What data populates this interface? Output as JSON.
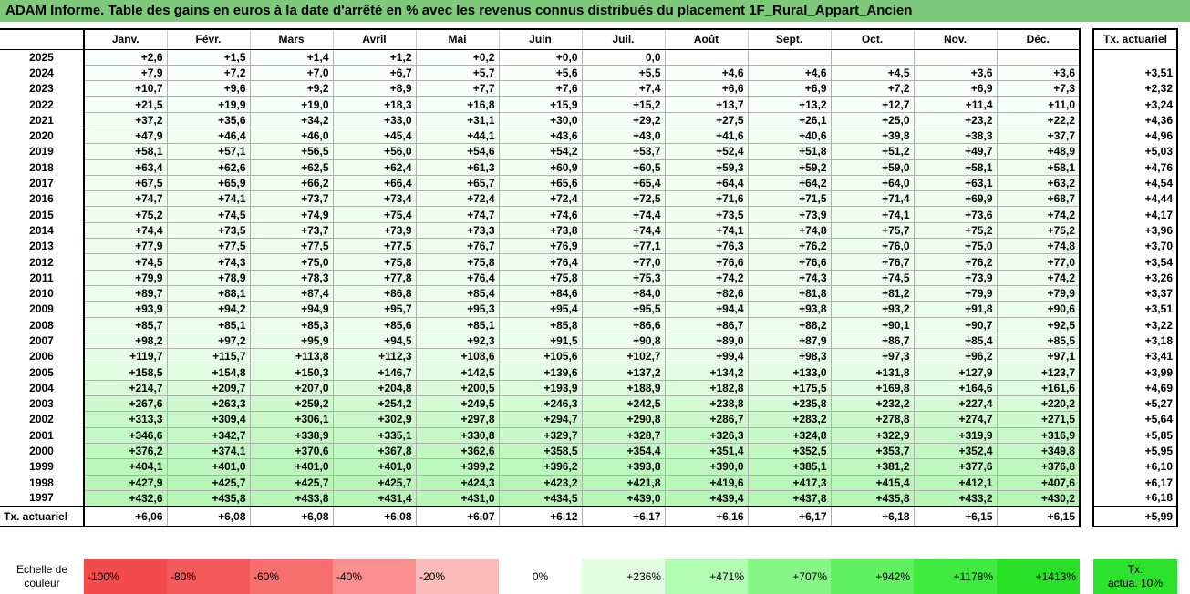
{
  "title": "ADAM Informe. Table des gains en euros à la date d'arrêté en % avec les revenus connus distribués du placement 1F_Rural_Appart_Ancien",
  "months": [
    "Janv.",
    "Févr.",
    "Mars",
    "Avril",
    "Mai",
    "Juin",
    "Juil.",
    "Août",
    "Sept.",
    "Oct.",
    "Nov.",
    "Déc."
  ],
  "rate_header": "Tx. actuariel",
  "rows": [
    {
      "year": "2025",
      "values": [
        "+2,6",
        "+1,5",
        "+1,4",
        "+1,2",
        "+0,2",
        "+0,0",
        "0,0",
        "",
        "",
        "",
        "",
        ""
      ],
      "rate": ""
    },
    {
      "year": "2024",
      "values": [
        "+7,9",
        "+7,2",
        "+7,0",
        "+6,7",
        "+5,7",
        "+5,6",
        "+5,5",
        "+4,6",
        "+4,6",
        "+4,5",
        "+3,6",
        "+3,6"
      ],
      "rate": "+3,51"
    },
    {
      "year": "2023",
      "values": [
        "+10,7",
        "+9,6",
        "+9,2",
        "+8,9",
        "+7,7",
        "+7,6",
        "+7,4",
        "+6,6",
        "+6,9",
        "+7,2",
        "+6,9",
        "+7,3"
      ],
      "rate": "+2,32"
    },
    {
      "year": "2022",
      "values": [
        "+21,5",
        "+19,9",
        "+19,0",
        "+18,3",
        "+16,8",
        "+15,9",
        "+15,2",
        "+13,7",
        "+13,2",
        "+12,7",
        "+11,4",
        "+11,0"
      ],
      "rate": "+3,24"
    },
    {
      "year": "2021",
      "values": [
        "+37,2",
        "+35,6",
        "+34,2",
        "+33,0",
        "+31,1",
        "+30,0",
        "+29,2",
        "+27,5",
        "+26,1",
        "+25,0",
        "+23,2",
        "+22,2"
      ],
      "rate": "+4,36"
    },
    {
      "year": "2020",
      "values": [
        "+47,9",
        "+46,4",
        "+46,0",
        "+45,4",
        "+44,1",
        "+43,6",
        "+43,0",
        "+41,6",
        "+40,6",
        "+39,8",
        "+38,3",
        "+37,7"
      ],
      "rate": "+4,96"
    },
    {
      "year": "2019",
      "values": [
        "+58,1",
        "+57,1",
        "+56,5",
        "+56,0",
        "+54,6",
        "+54,2",
        "+53,7",
        "+52,4",
        "+51,8",
        "+51,2",
        "+49,7",
        "+48,9"
      ],
      "rate": "+5,03"
    },
    {
      "year": "2018",
      "values": [
        "+63,4",
        "+62,6",
        "+62,5",
        "+62,4",
        "+61,3",
        "+60,9",
        "+60,5",
        "+59,3",
        "+59,2",
        "+59,0",
        "+58,1",
        "+58,1"
      ],
      "rate": "+4,76"
    },
    {
      "year": "2017",
      "values": [
        "+67,5",
        "+65,9",
        "+66,2",
        "+66,4",
        "+65,7",
        "+65,6",
        "+65,4",
        "+64,4",
        "+64,2",
        "+64,0",
        "+63,1",
        "+63,2"
      ],
      "rate": "+4,54"
    },
    {
      "year": "2016",
      "values": [
        "+74,7",
        "+74,1",
        "+73,7",
        "+73,4",
        "+72,4",
        "+72,4",
        "+72,5",
        "+71,6",
        "+71,5",
        "+71,4",
        "+69,9",
        "+68,7"
      ],
      "rate": "+4,44"
    },
    {
      "year": "2015",
      "values": [
        "+75,2",
        "+74,5",
        "+74,9",
        "+75,4",
        "+74,7",
        "+74,6",
        "+74,4",
        "+73,5",
        "+73,9",
        "+74,1",
        "+73,6",
        "+74,2"
      ],
      "rate": "+4,17"
    },
    {
      "year": "2014",
      "values": [
        "+74,4",
        "+73,5",
        "+73,7",
        "+73,9",
        "+73,3",
        "+73,8",
        "+74,4",
        "+74,1",
        "+74,8",
        "+75,7",
        "+75,2",
        "+75,2"
      ],
      "rate": "+3,96"
    },
    {
      "year": "2013",
      "values": [
        "+77,9",
        "+77,5",
        "+77,5",
        "+77,5",
        "+76,7",
        "+76,9",
        "+77,1",
        "+76,3",
        "+76,2",
        "+76,0",
        "+75,0",
        "+74,8"
      ],
      "rate": "+3,70"
    },
    {
      "year": "2012",
      "values": [
        "+74,5",
        "+74,3",
        "+75,0",
        "+75,8",
        "+75,8",
        "+76,4",
        "+77,0",
        "+76,6",
        "+76,6",
        "+76,7",
        "+76,2",
        "+77,0"
      ],
      "rate": "+3,54"
    },
    {
      "year": "2011",
      "values": [
        "+79,9",
        "+78,9",
        "+78,3",
        "+77,8",
        "+76,4",
        "+75,8",
        "+75,3",
        "+74,2",
        "+74,3",
        "+74,5",
        "+73,9",
        "+74,2"
      ],
      "rate": "+3,26"
    },
    {
      "year": "2010",
      "values": [
        "+89,7",
        "+88,1",
        "+87,4",
        "+86,8",
        "+85,4",
        "+84,6",
        "+84,0",
        "+82,6",
        "+81,8",
        "+81,2",
        "+79,9",
        "+79,9"
      ],
      "rate": "+3,37"
    },
    {
      "year": "2009",
      "values": [
        "+93,9",
        "+94,2",
        "+94,9",
        "+95,7",
        "+95,3",
        "+95,4",
        "+95,5",
        "+94,4",
        "+93,8",
        "+93,2",
        "+91,8",
        "+90,6"
      ],
      "rate": "+3,51"
    },
    {
      "year": "2008",
      "values": [
        "+85,7",
        "+85,1",
        "+85,3",
        "+85,6",
        "+85,1",
        "+85,8",
        "+86,6",
        "+86,7",
        "+88,2",
        "+90,1",
        "+90,7",
        "+92,5"
      ],
      "rate": "+3,22"
    },
    {
      "year": "2007",
      "values": [
        "+98,2",
        "+97,2",
        "+95,9",
        "+94,5",
        "+92,3",
        "+91,5",
        "+90,8",
        "+89,0",
        "+87,9",
        "+86,7",
        "+85,4",
        "+85,5"
      ],
      "rate": "+3,18"
    },
    {
      "year": "2006",
      "values": [
        "+119,7",
        "+115,7",
        "+113,8",
        "+112,3",
        "+108,6",
        "+105,6",
        "+102,7",
        "+99,4",
        "+98,3",
        "+97,3",
        "+96,2",
        "+97,1"
      ],
      "rate": "+3,41"
    },
    {
      "year": "2005",
      "values": [
        "+158,5",
        "+154,8",
        "+150,3",
        "+146,7",
        "+142,5",
        "+139,6",
        "+137,2",
        "+134,2",
        "+133,0",
        "+131,8",
        "+127,9",
        "+123,7"
      ],
      "rate": "+3,99"
    },
    {
      "year": "2004",
      "values": [
        "+214,7",
        "+209,7",
        "+207,0",
        "+204,8",
        "+200,5",
        "+193,9",
        "+188,9",
        "+182,8",
        "+175,5",
        "+169,8",
        "+164,6",
        "+161,6"
      ],
      "rate": "+4,69"
    },
    {
      "year": "2003",
      "values": [
        "+267,6",
        "+263,3",
        "+259,2",
        "+254,2",
        "+249,5",
        "+246,3",
        "+242,5",
        "+238,8",
        "+235,8",
        "+232,2",
        "+227,4",
        "+220,2"
      ],
      "rate": "+5,27"
    },
    {
      "year": "2002",
      "values": [
        "+313,3",
        "+309,4",
        "+306,1",
        "+302,9",
        "+297,8",
        "+294,7",
        "+290,8",
        "+286,7",
        "+283,2",
        "+278,8",
        "+274,7",
        "+271,5"
      ],
      "rate": "+5,64"
    },
    {
      "year": "2001",
      "values": [
        "+346,6",
        "+342,7",
        "+338,9",
        "+335,1",
        "+330,8",
        "+329,7",
        "+328,7",
        "+326,3",
        "+324,8",
        "+322,9",
        "+319,9",
        "+316,9"
      ],
      "rate": "+5,85"
    },
    {
      "year": "2000",
      "values": [
        "+376,2",
        "+374,1",
        "+370,6",
        "+367,8",
        "+362,6",
        "+358,5",
        "+354,4",
        "+351,4",
        "+352,5",
        "+353,7",
        "+352,4",
        "+349,8"
      ],
      "rate": "+5,95"
    },
    {
      "year": "1999",
      "values": [
        "+404,1",
        "+401,0",
        "+401,0",
        "+401,0",
        "+399,2",
        "+396,2",
        "+393,8",
        "+390,0",
        "+385,1",
        "+381,2",
        "+377,6",
        "+376,8"
      ],
      "rate": "+6,10"
    },
    {
      "year": "1998",
      "values": [
        "+427,9",
        "+425,7",
        "+425,7",
        "+425,7",
        "+424,3",
        "+423,2",
        "+421,8",
        "+419,6",
        "+417,3",
        "+415,4",
        "+412,1",
        "+407,6"
      ],
      "rate": "+6,17"
    },
    {
      "year": "1997",
      "values": [
        "+432,6",
        "+435,8",
        "+433,8",
        "+431,4",
        "+431,0",
        "+434,5",
        "+439,0",
        "+439,4",
        "+437,8",
        "+435,8",
        "+433,2",
        "+430,2"
      ],
      "rate": "+6,18"
    }
  ],
  "footer": {
    "label": "Tx. actuariel",
    "values": [
      "+6,06",
      "+6,08",
      "+6,08",
      "+6,08",
      "+6,07",
      "+6,12",
      "+6,17",
      "+6,16",
      "+6,17",
      "+6,18",
      "+6,15",
      "+6,15"
    ],
    "rate": "+5,99"
  },
  "scale": {
    "label_line1": "Echelle de",
    "label_line2": "couleur",
    "items": [
      {
        "label": "-100%",
        "color": "#f24b4b",
        "kind": "neg"
      },
      {
        "label": "-80%",
        "color": "#f45a5a",
        "kind": "neg"
      },
      {
        "label": "-60%",
        "color": "#f76e6e",
        "kind": "neg"
      },
      {
        "label": "-40%",
        "color": "#f98e8e",
        "kind": "neg"
      },
      {
        "label": "-20%",
        "color": "#fcbcbc",
        "kind": "neg"
      },
      {
        "label": "0%",
        "color": "#ffffff",
        "kind": "zero"
      },
      {
        "label": "+236%",
        "color": "#e3fde3",
        "kind": "pos"
      },
      {
        "label": "+471%",
        "color": "#b2fbb2",
        "kind": "pos"
      },
      {
        "label": "+707%",
        "color": "#86f786",
        "kind": "pos"
      },
      {
        "label": "+942%",
        "color": "#5ff15f",
        "kind": "pos"
      },
      {
        "label": "+1178%",
        "color": "#3fea3f",
        "kind": "pos"
      },
      {
        "label": "+1413%",
        "color": "#27e127",
        "kind": "pos"
      }
    ],
    "act_line1": "Tx.",
    "act_line2": "actua. 10%",
    "act_color": "#2de22d"
  }
}
